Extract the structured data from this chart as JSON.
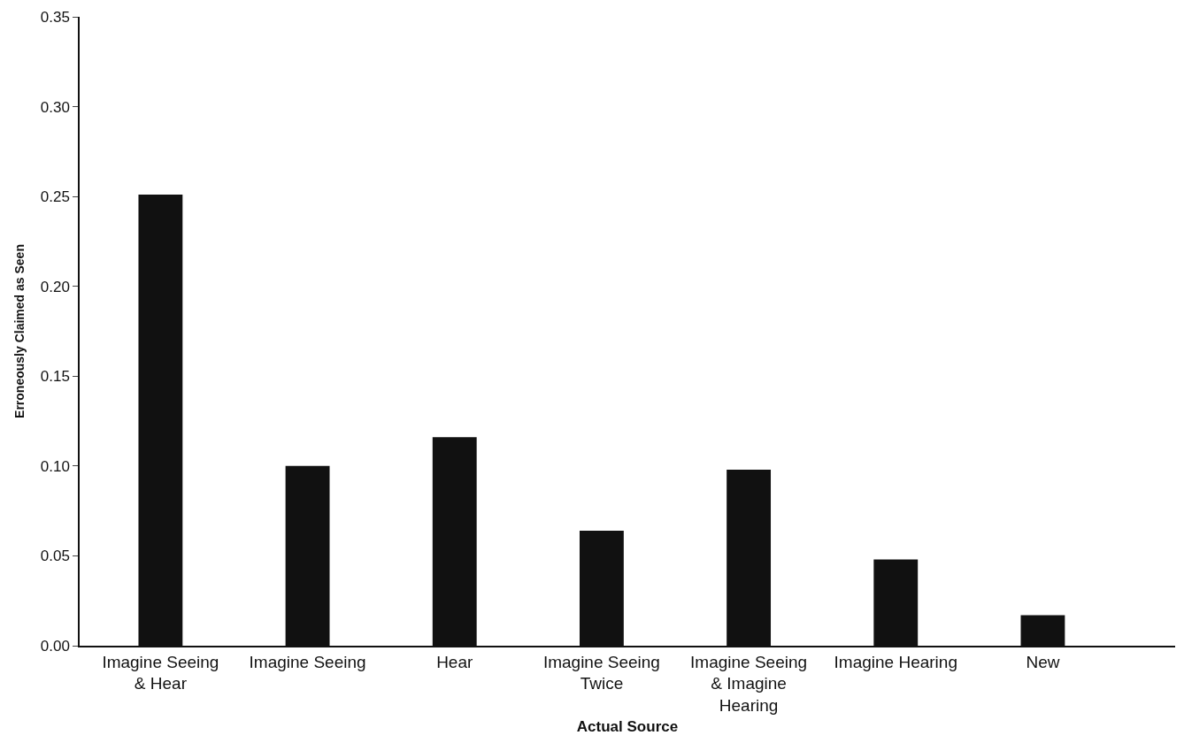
{
  "chart_data": {
    "type": "bar",
    "xlabel": "Actual Source",
    "ylabel": "Erroneously Claimed as Seen",
    "categories": [
      "Imagine Seeing\n& Hear",
      "Imagine Seeing",
      "Hear",
      "Imagine Seeing\nTwice",
      "Imagine Seeing\n& Imagine\nHearing",
      "Imagine Hearing",
      "New"
    ],
    "values": [
      0.251,
      0.1,
      0.116,
      0.064,
      0.098,
      0.048,
      0.017
    ],
    "color": "#111111",
    "ylim": [
      0,
      0.35
    ],
    "yticks": [
      {
        "value": 0,
        "label": "0.00"
      },
      {
        "value": 0.05,
        "label": "0.05"
      },
      {
        "value": 0.1,
        "label": "0.10"
      },
      {
        "value": 0.15,
        "label": "0.15"
      },
      {
        "value": 0.2,
        "label": "0.20"
      },
      {
        "value": 0.25,
        "label": "0.25"
      },
      {
        "value": 0.3,
        "label": "0.30"
      },
      {
        "value": 0.35,
        "label": "0.35"
      }
    ],
    "tick_labels": [
      "x",
      "y"
    ]
  }
}
